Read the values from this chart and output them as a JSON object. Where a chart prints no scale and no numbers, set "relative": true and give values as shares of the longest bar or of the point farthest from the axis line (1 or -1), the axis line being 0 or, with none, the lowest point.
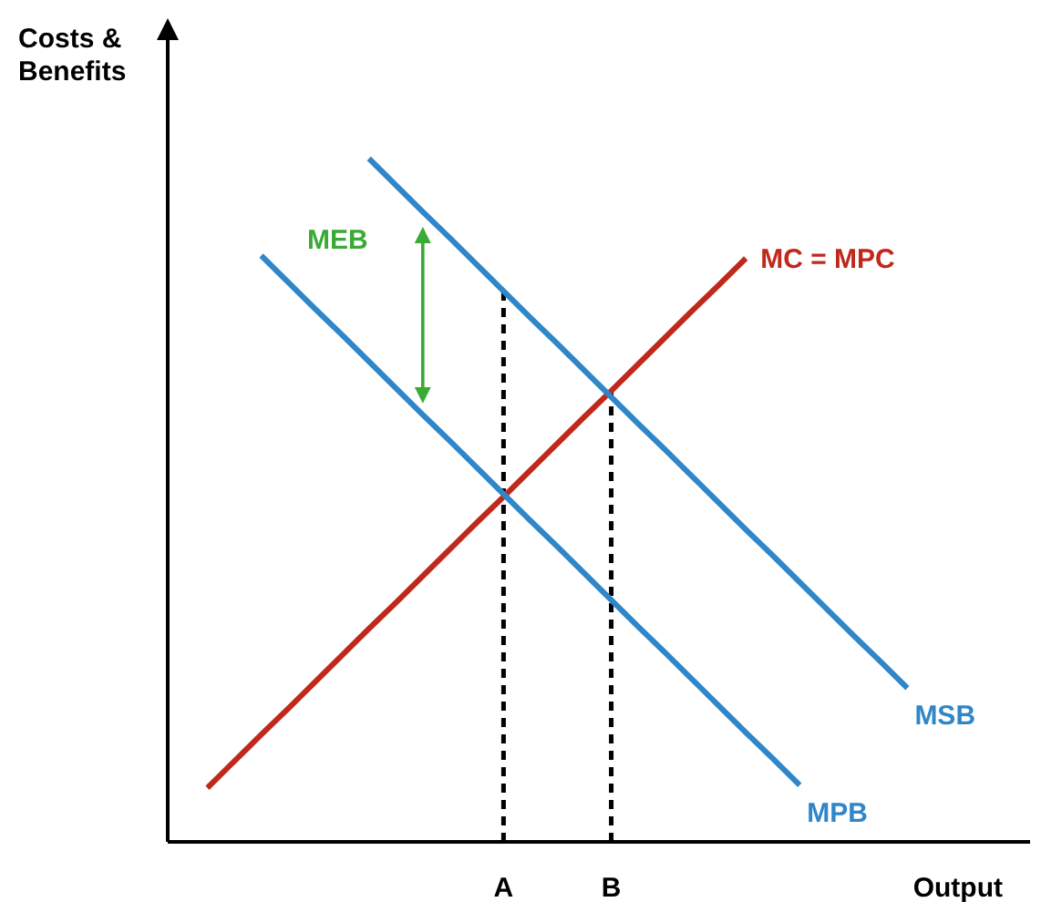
{
  "chart_data": {
    "type": "line",
    "relative": true,
    "xlabel": "Output",
    "ylabel": "Costs & Benefits",
    "marker": "none",
    "categories": [
      null,
      null,
      null,
      null,
      null,
      null,
      null,
      null,
      null,
      null,
      null,
      null,
      "A",
      null,
      null,
      null,
      "B",
      null,
      null,
      null,
      null,
      null,
      null,
      null,
      null,
      null,
      null,
      null,
      null,
      null,
      null
    ],
    "series": [
      {
        "name": "MC = MPC",
        "color": "#c0281c",
        "values": [
          null,
          0.079,
          0.118,
          0.157,
          0.195,
          0.234,
          0.273,
          0.312,
          0.35,
          0.389,
          0.428,
          0.467,
          0.505,
          0.544,
          0.583,
          0.622,
          0.66,
          0.699,
          0.738,
          0.777,
          0.815,
          0.854,
          null,
          null,
          null,
          null,
          null,
          null,
          null,
          null,
          null
        ]
      },
      {
        "name": "MSB",
        "color": "#2f86c8",
        "values": [
          null,
          null,
          null,
          null,
          null,
          null,
          null,
          1,
          0.961,
          0.922,
          0.884,
          0.845,
          0.806,
          0.767,
          0.729,
          0.69,
          0.651,
          0.612,
          0.574,
          0.535,
          0.496,
          0.457,
          0.419,
          0.38,
          0.341,
          0.302,
          0.264,
          0.225,
          null,
          null,
          null
        ]
      },
      {
        "name": "MPB",
        "color": "#2f86c8",
        "values": [
          null,
          null,
          null,
          0.858,
          0.819,
          0.78,
          0.742,
          0.703,
          0.664,
          0.625,
          0.587,
          0.548,
          0.509,
          0.47,
          0.432,
          0.393,
          0.354,
          0.315,
          0.277,
          0.238,
          0.199,
          0.16,
          0.122,
          0.083,
          null,
          null,
          null,
          null,
          null,
          null,
          null
        ]
      }
    ],
    "ref_lines": [
      {
        "axis": "x",
        "value": "A",
        "color": "#000000",
        "line_style": "dashed"
      },
      {
        "axis": "x",
        "value": "B",
        "color": "#000000",
        "line_style": "dashed"
      }
    ],
    "annotations": [
      "MEB"
    ]
  }
}
